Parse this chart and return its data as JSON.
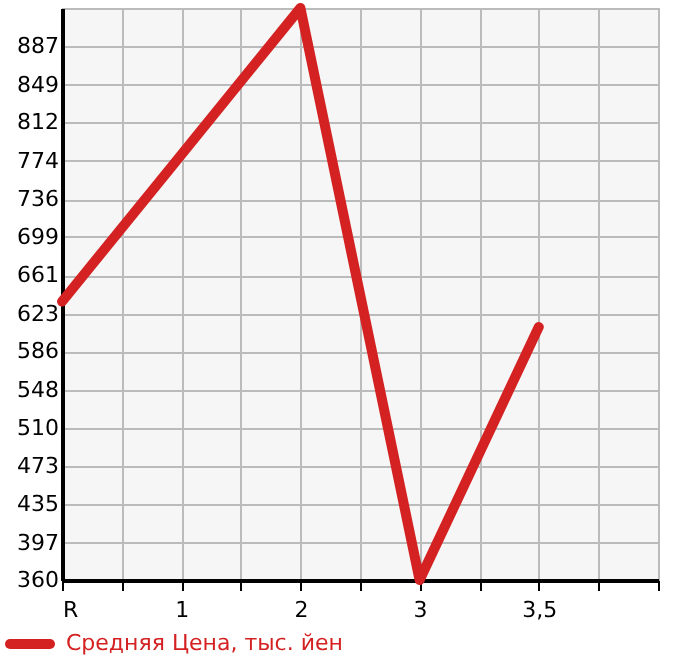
{
  "chart_data": {
    "type": "line",
    "categories": [
      "R",
      "1",
      "2",
      "3",
      "3,5",
      null
    ],
    "series": [
      {
        "name": "Средняя Цена, тыс. йен",
        "color": "#d42222",
        "values": [
          635,
          780,
          925,
          360,
          610,
          null
        ]
      }
    ],
    "ylim": [
      360,
      925
    ],
    "yticks": [
      360,
      397,
      435,
      473,
      510,
      548,
      586,
      623,
      661,
      699,
      736,
      774,
      812,
      849,
      887
    ],
    "grid": true,
    "legend": "bottom left",
    "marker": "none",
    "line_style": "solid"
  }
}
